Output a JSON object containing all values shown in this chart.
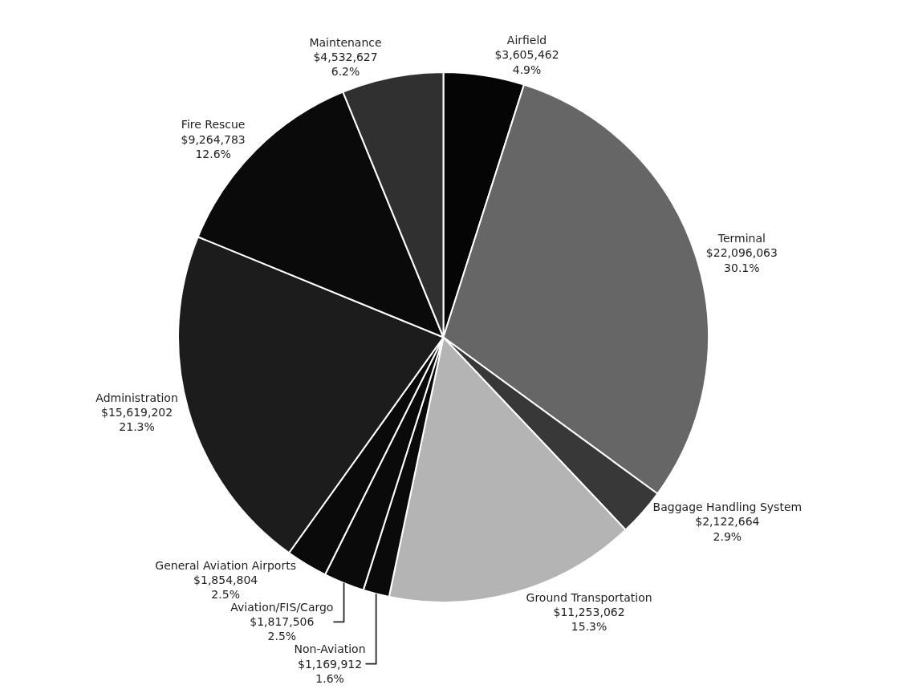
{
  "chart_data": {
    "type": "pie",
    "categories": [
      "Airfield",
      "Terminal",
      "Baggage Handling System",
      "Ground Transportation",
      "Non-Aviation",
      "Aviation/FIS/Cargo",
      "General Aviation Airports",
      "Administration",
      "Fire Rescue",
      "Maintenance"
    ],
    "values": [
      3605462,
      22096063,
      2122664,
      11253062,
      1169912,
      1817506,
      1854804,
      15619202,
      9264783,
      4532627
    ],
    "value_labels": [
      "$3,605,462\n4.9%",
      "$22,096,063\n30.1%",
      "$2,122,664\n2.9%",
      "$11,253,062\n15.3%",
      "$1,169,912\n1.6%",
      "$1,817,506\n2.5%",
      "$1,854,804\n2.5%",
      "$15,619,202\n21.3%",
      "$9,264,783\n12.6%",
      "$4,532,627\n6.2%"
    ],
    "colors": [
      "#050505",
      "#666666",
      "#383838",
      "#b4b4b4",
      "#0a0a0a",
      "#0a0a0a",
      "#0a0a0a",
      "#1c1c1c",
      "#0a0a0a",
      "#303030"
    ],
    "legend": false
  }
}
